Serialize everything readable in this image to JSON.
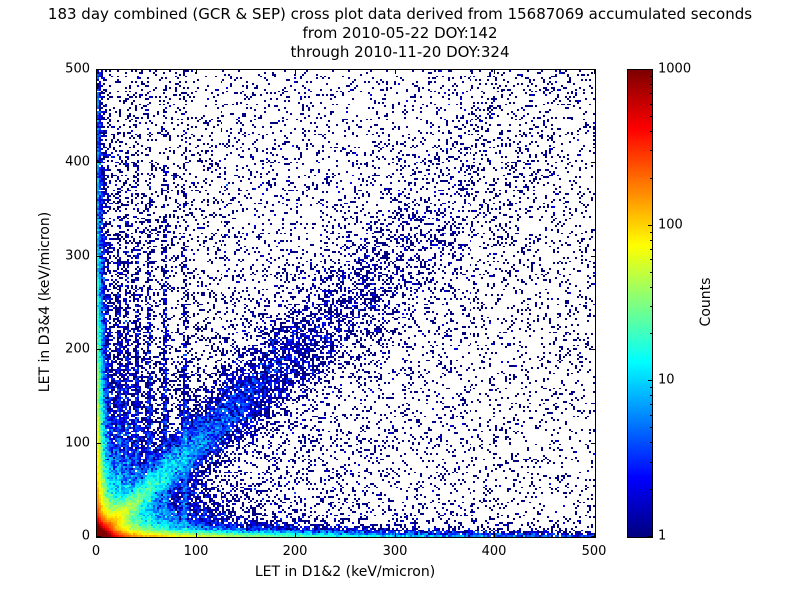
{
  "title": {
    "line1": "183 day combined (GCR & SEP) cross plot data derived from 15687069 accumulated seconds",
    "line2": "from 2010-05-22 DOY:142",
    "line3": "through 2010-11-20 DOY:324"
  },
  "chart_data": {
    "type": "heatmap",
    "title": "183 day combined (GCR & SEP) cross plot data derived from 15687069 accumulated seconds from 2010-05-22 DOY:142 through 2010-11-20 DOY:324",
    "xlabel": "LET in D1&2 (keV/micron)",
    "ylabel": "LET in D3&4 (keV/micron)",
    "xlim": [
      0,
      500
    ],
    "ylim": [
      0,
      500
    ],
    "x_ticks": [
      0,
      100,
      200,
      300,
      400,
      500
    ],
    "y_ticks": [
      0,
      100,
      200,
      300,
      400,
      500
    ],
    "grid": false,
    "accumulated_seconds": 15687069,
    "date_range": {
      "from": "2010-05-22",
      "from_doy": 142,
      "through": "2010-11-20",
      "through_doy": 324
    },
    "colorbar": {
      "label": "Counts",
      "scale": "log",
      "min": 1,
      "max": 1000,
      "ticks": [
        1,
        10,
        100,
        1000
      ],
      "colormap": "jet"
    },
    "features": [
      "intense hotspot at the origin (LET < ~25 in both detectors) reaching ~1000 counts: red/orange core with yellow-green-cyan halo",
      "bright cyan diagonal coincidence band along y=x from the origin out to ~350 keV/micron, widening and fading with distance",
      "dense horizontal band hugging the x-axis (D3&4 LET near 0) extending past 300 keV/micron",
      "dense vertical band hugging the y-axis (D1&2 LET near 0) extending past 300 keV/micron",
      "several faint vertical streaks near D1&2 LET of roughly 20-90 keV/micron",
      "sparse isolated single-count events (dark blue pixels) scattered over the full 0-500 x 0-500 range"
    ],
    "density_model": {
      "seed": 20101120,
      "bins": 250,
      "components": [
        {
          "name": "origin-core",
          "type": "exp2d",
          "n": 60000,
          "sx": 4,
          "sy": 4
        },
        {
          "name": "origin-mid",
          "type": "exp2d",
          "n": 30000,
          "sx": 12,
          "sy": 12
        },
        {
          "name": "origin-halo",
          "type": "exp2d",
          "n": 18000,
          "sx": 32,
          "sy": 32
        },
        {
          "name": "x-axis-band",
          "type": "exp2d",
          "n": 15000,
          "sx": 95,
          "sy": 3.5
        },
        {
          "name": "x-axis-band-far",
          "type": "exp2d",
          "n": 3000,
          "sx": 260,
          "sy": 2.5
        },
        {
          "name": "y-axis-band",
          "type": "exp2d",
          "n": 15000,
          "sx": 3.5,
          "sy": 95
        },
        {
          "name": "y-axis-band-far",
          "type": "exp2d",
          "n": 3000,
          "sx": 2.5,
          "sy": 260
        },
        {
          "name": "diagonal-band",
          "type": "diag",
          "n": 14000,
          "scale": 80,
          "spread0": 2,
          "spreadGrow": 0.09
        },
        {
          "name": "diagonal-band-far",
          "type": "diag",
          "n": 4000,
          "scale": 210,
          "spread0": 5,
          "spreadGrow": 0.12
        },
        {
          "name": "vertical-streaks",
          "type": "streaks",
          "n": 4500,
          "xs": [
            22,
            30,
            40,
            52,
            68,
            88
          ],
          "sx": 1.5,
          "sy": 130
        },
        {
          "name": "background-uniform",
          "type": "uniform",
          "n": 6500
        },
        {
          "name": "background-left",
          "type": "exp2d",
          "n": 4000,
          "sx": 120,
          "sy": 230
        }
      ]
    }
  }
}
